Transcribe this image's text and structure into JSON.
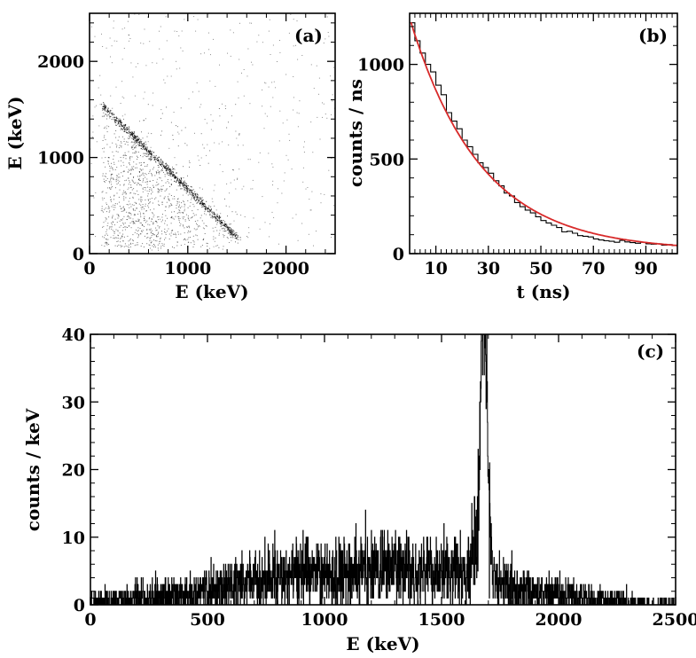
{
  "chart_data": [
    {
      "id": "a",
      "type": "scatter",
      "panel_label": "(a)",
      "xlabel": "E (keV)",
      "ylabel": "E (keV)",
      "xlim": [
        0,
        2500
      ],
      "ylim": [
        0,
        2500
      ],
      "xticks": [
        0,
        1000,
        2000
      ],
      "yticks": [
        0,
        1000,
        2000
      ],
      "diagonal_band": {
        "x_start": 130,
        "y_start": 1540,
        "x_end": 1500,
        "y_end": 170
      },
      "grid": false,
      "legend": "none"
    },
    {
      "id": "b",
      "type": "line",
      "panel_label": "(b)",
      "xlabel": "t (ns)",
      "ylabel": "counts / ns",
      "xlim": [
        0,
        102
      ],
      "ylim": [
        0,
        1270
      ],
      "xticks": [
        10,
        30,
        50,
        70,
        90
      ],
      "yticks": [
        0,
        500,
        1000
      ],
      "series": [
        {
          "style": "histogram",
          "color": "#000000",
          "x": [
            0,
            2,
            4,
            6,
            8,
            10,
            12,
            14,
            16,
            18,
            20,
            22,
            24,
            26,
            28,
            30,
            32,
            34,
            36,
            38,
            40,
            42,
            44,
            46,
            48,
            50,
            52,
            54,
            56,
            58,
            60,
            62,
            64,
            66,
            68,
            70,
            72,
            74,
            76,
            78,
            80,
            82,
            84,
            86,
            88,
            90,
            92,
            94,
            96,
            98,
            100
          ],
          "values": [
            1220,
            1125,
            1060,
            1000,
            960,
            890,
            840,
            745,
            700,
            660,
            600,
            565,
            525,
            480,
            455,
            425,
            385,
            358,
            320,
            305,
            270,
            248,
            230,
            215,
            195,
            175,
            162,
            150,
            138,
            115,
            118,
            108,
            95,
            92,
            88,
            78,
            72,
            68,
            65,
            60,
            70,
            62,
            58,
            55,
            60,
            52,
            50,
            52,
            45,
            48,
            42
          ]
        },
        {
          "style": "fit",
          "color": "#d82a2a",
          "function": "exponential",
          "amplitude": 1230,
          "tau": 27,
          "offset": 15
        }
      ],
      "grid": false,
      "legend": "none"
    },
    {
      "id": "c",
      "type": "line",
      "panel_label": "(c)",
      "xlabel": "E (keV)",
      "ylabel": "counts / keV",
      "xlim": [
        0,
        2500
      ],
      "ylim": [
        0,
        40
      ],
      "xticks": [
        0,
        500,
        1000,
        1500,
        2000,
        2500
      ],
      "yticks": [
        0,
        10,
        20,
        30,
        40
      ],
      "series": [
        {
          "style": "histogram",
          "color": "#000000",
          "peak_energy": 1680,
          "peak_height": 39,
          "continuum_level": 5,
          "continuum_range": [
            500,
            1650
          ]
        }
      ],
      "grid": false,
      "legend": "none"
    }
  ]
}
